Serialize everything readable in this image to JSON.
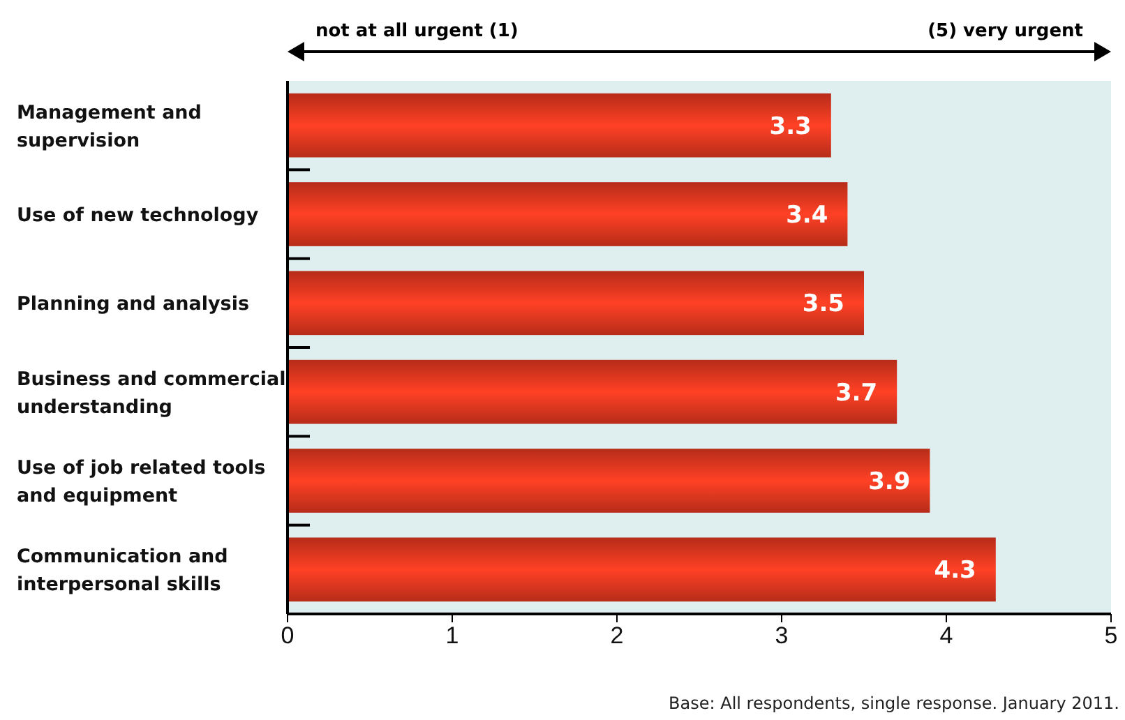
{
  "chart_data": {
    "type": "bar",
    "orientation": "horizontal",
    "categories": [
      "Management and supervision",
      "Use of new technology",
      "Planning and analysis",
      "Business and commercial understanding",
      "Use of job related tools and equipment",
      "Communication and interpersonal skills"
    ],
    "values": [
      3.3,
      3.4,
      3.5,
      3.7,
      3.9,
      4.3
    ],
    "color": "#e2361f",
    "xlim": [
      0,
      5
    ],
    "xticks": [
      0,
      1,
      2,
      3,
      4,
      5
    ],
    "data_labels": true,
    "grid": false,
    "annotations": [
      "not at all urgent (1)",
      "(5) very urgent",
      "Base: All respondents, single response. January 2011."
    ]
  }
}
